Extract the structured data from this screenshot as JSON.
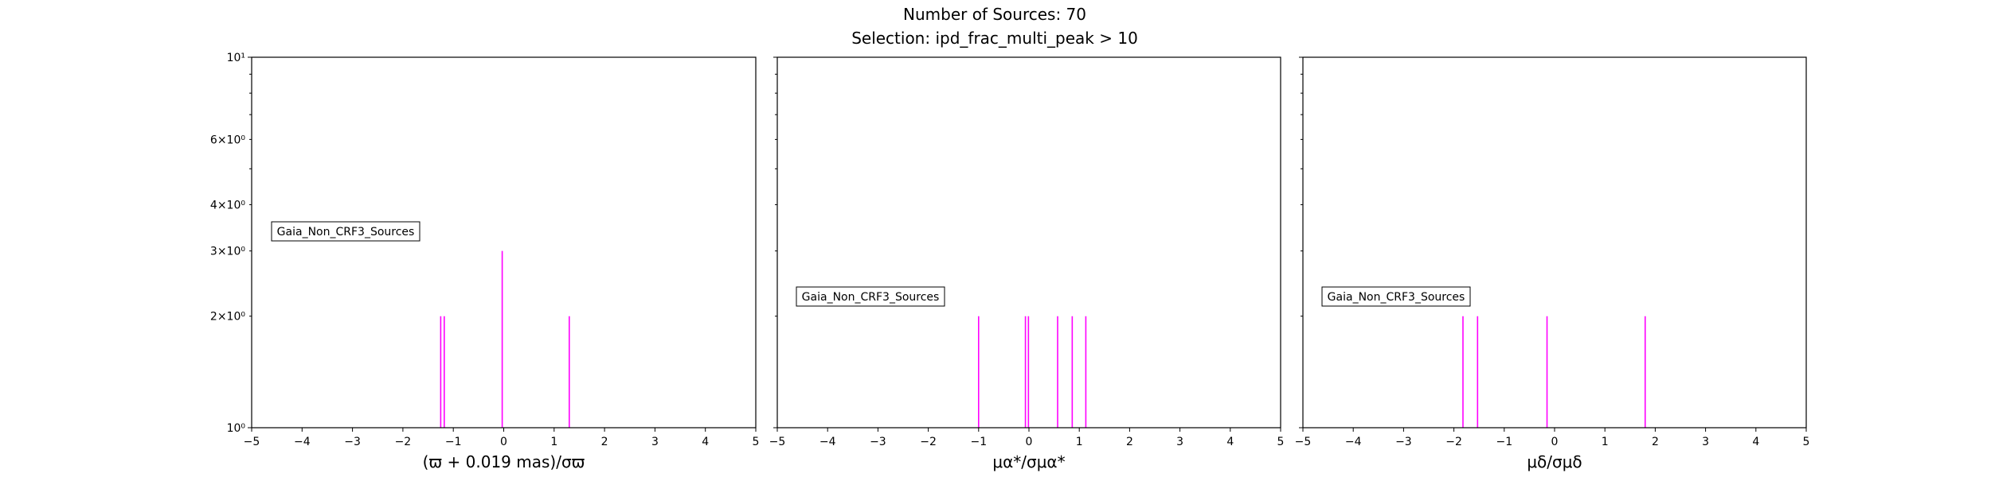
{
  "figure": {
    "title_line1": "Number of Sources: 70",
    "title_line2": "Selection: ipd_frac_multi_peak > 10"
  },
  "colors": {
    "bars": "#ff00ff",
    "axes": "#000000",
    "background": "#ffffff"
  },
  "chart_data": [
    {
      "type": "bar",
      "xlabel": "(ϖ + 0.019 mas)/σϖ",
      "xlim": [
        -5,
        5
      ],
      "xticks": [
        -5,
        -4,
        -3,
        -2,
        -1,
        0,
        1,
        2,
        3,
        4,
        5
      ],
      "ylim": [
        1,
        10
      ],
      "yscale": "log",
      "yticks": [
        1,
        2,
        3,
        4,
        6,
        10
      ],
      "ytick_labels": [
        "10⁰",
        "2×10⁰",
        "3×10⁰",
        "4×10⁰",
        "6×10⁰",
        "10¹"
      ],
      "annotation": "Gaia_Non_CRF3_Sources",
      "bars": [
        {
          "x": -1.25,
          "count": 2
        },
        {
          "x": -1.18,
          "count": 2
        },
        {
          "x": -0.03,
          "count": 3
        },
        {
          "x": 1.3,
          "count": 2
        }
      ]
    },
    {
      "type": "bar",
      "xlabel": "μα*/σμα*",
      "xlim": [
        -5,
        5
      ],
      "xticks": [
        -5,
        -4,
        -3,
        -2,
        -1,
        0,
        1,
        2,
        3,
        4,
        5
      ],
      "ylim": [
        1,
        10
      ],
      "yscale": "log",
      "annotation": "Gaia_Non_CRF3_Sources",
      "bars": [
        {
          "x": -1.0,
          "count": 2
        },
        {
          "x": -0.07,
          "count": 2
        },
        {
          "x": -0.01,
          "count": 2
        },
        {
          "x": 0.57,
          "count": 2
        },
        {
          "x": 0.86,
          "count": 2
        },
        {
          "x": 1.13,
          "count": 2
        }
      ]
    },
    {
      "type": "bar",
      "xlabel": "μδ/σμδ",
      "xlim": [
        -5,
        5
      ],
      "xticks": [
        -5,
        -4,
        -3,
        -2,
        -1,
        0,
        1,
        2,
        3,
        4,
        5
      ],
      "ylim": [
        1,
        10
      ],
      "yscale": "log",
      "annotation": "Gaia_Non_CRF3_Sources",
      "bars": [
        {
          "x": -1.82,
          "count": 2
        },
        {
          "x": -1.53,
          "count": 2
        },
        {
          "x": -0.15,
          "count": 2
        },
        {
          "x": 1.8,
          "count": 2
        }
      ]
    }
  ]
}
